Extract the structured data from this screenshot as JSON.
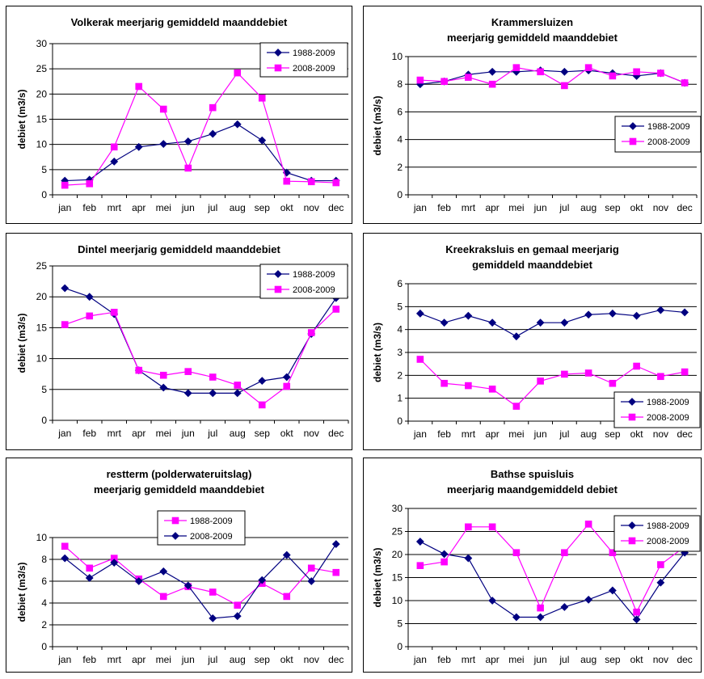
{
  "chart_data": [
    {
      "type": "line",
      "title": [
        "Volkerak meerjarig gemiddeld maanddebiet"
      ],
      "ylabel": "debiet (m3/s)",
      "categories": [
        "jan",
        "feb",
        "mrt",
        "apr",
        "mei",
        "jun",
        "jul",
        "aug",
        "sep",
        "okt",
        "nov",
        "dec"
      ],
      "ylim": [
        0,
        30
      ],
      "yticks": [
        0,
        5,
        10,
        15,
        20,
        25,
        30
      ],
      "grid": true,
      "legend": "top-right",
      "series": [
        {
          "name": "1988-2009",
          "marker": "diamond",
          "color": "#000080",
          "values": [
            2.8,
            3.0,
            6.6,
            9.5,
            10.1,
            10.6,
            12.1,
            14.0,
            10.8,
            4.4,
            2.8,
            2.8
          ]
        },
        {
          "name": "2008-2009",
          "marker": "square",
          "color": "#FF00FF",
          "values": [
            1.9,
            2.2,
            9.5,
            21.5,
            17.0,
            5.3,
            17.3,
            24.2,
            19.2,
            2.7,
            2.6,
            2.4
          ]
        }
      ]
    },
    {
      "type": "line",
      "title": [
        "Krammersluizen",
        "meerjarig gemiddeld maanddebiet"
      ],
      "ylabel": "debiet (m3/s)",
      "categories": [
        "jan",
        "feb",
        "mrt",
        "apr",
        "mei",
        "jun",
        "jul",
        "aug",
        "sep",
        "okt",
        "nov",
        "dec"
      ],
      "ylim": [
        0,
        10
      ],
      "yticks": [
        0,
        2,
        4,
        6,
        8,
        10
      ],
      "grid": true,
      "legend": "right",
      "series": [
        {
          "name": "1988-2009",
          "marker": "diamond",
          "color": "#000080",
          "values": [
            8.0,
            8.2,
            8.7,
            8.9,
            8.9,
            9.0,
            8.9,
            9.0,
            8.8,
            8.6,
            8.8,
            8.1
          ]
        },
        {
          "name": "2008-2009",
          "marker": "square",
          "color": "#FF00FF",
          "values": [
            8.3,
            8.2,
            8.5,
            8.0,
            9.2,
            8.9,
            7.9,
            9.2,
            8.6,
            8.9,
            8.8,
            8.1
          ]
        }
      ]
    },
    {
      "type": "line",
      "title": [
        "Dintel meerjarig gemiddeld maanddebiet"
      ],
      "ylabel": "debiet (m3/s)",
      "categories": [
        "jan",
        "feb",
        "mrt",
        "apr",
        "mei",
        "jun",
        "jul",
        "aug",
        "sep",
        "okt",
        "nov",
        "dec"
      ],
      "ylim": [
        0,
        25
      ],
      "yticks": [
        0,
        5,
        10,
        15,
        20,
        25
      ],
      "grid": true,
      "legend": "top-right",
      "series": [
        {
          "name": "1988-2009",
          "marker": "diamond",
          "color": "#000080",
          "values": [
            21.4,
            20.0,
            17.2,
            8.1,
            5.3,
            4.4,
            4.4,
            4.4,
            6.4,
            7.0,
            14.0,
            19.8
          ]
        },
        {
          "name": "2008-2009",
          "marker": "square",
          "color": "#FF00FF",
          "values": [
            15.5,
            16.9,
            17.5,
            8.1,
            7.3,
            7.9,
            7.0,
            5.7,
            2.5,
            5.5,
            14.2,
            18.0
          ]
        }
      ]
    },
    {
      "type": "line",
      "title": [
        "Kreekraksluis en gemaal meerjarig",
        "gemiddeld maanddebiet"
      ],
      "ylabel": "debiet (m3/s)",
      "categories": [
        "jan",
        "feb",
        "mrt",
        "apr",
        "mei",
        "jun",
        "jul",
        "aug",
        "sep",
        "okt",
        "nov",
        "dec"
      ],
      "ylim": [
        0,
        6
      ],
      "yticks": [
        0,
        1,
        2,
        3,
        4,
        5,
        6
      ],
      "grid": true,
      "legend": "bottom-right",
      "series": [
        {
          "name": "1988-2009",
          "marker": "diamond",
          "color": "#000080",
          "values": [
            4.7,
            4.3,
            4.6,
            4.3,
            3.7,
            4.3,
            4.3,
            4.65,
            4.7,
            4.6,
            4.85,
            4.75
          ]
        },
        {
          "name": "2008-2009",
          "marker": "square",
          "color": "#FF00FF",
          "values": [
            2.7,
            1.65,
            1.55,
            1.4,
            0.65,
            1.75,
            2.05,
            2.1,
            1.65,
            2.4,
            1.95,
            2.15
          ]
        }
      ]
    },
    {
      "type": "line",
      "title": [
        "restterm (polderwateruitslag)",
        "meerjarig gemiddeld maanddebiet"
      ],
      "ylabel": "debiet (m3/s)",
      "categories": [
        "jan",
        "feb",
        "mrt",
        "apr",
        "mei",
        "jun",
        "jul",
        "aug",
        "sep",
        "okt",
        "nov",
        "dec"
      ],
      "ylim": [
        0,
        10
      ],
      "yticks": [
        0,
        2,
        4,
        6,
        8,
        10
      ],
      "grid": true,
      "legend": "top-center",
      "series": [
        {
          "name": "1988-2009",
          "marker": "square",
          "color": "#FF00FF",
          "values": [
            9.2,
            7.2,
            8.1,
            6.2,
            4.6,
            5.5,
            5.0,
            3.8,
            5.8,
            4.6,
            7.2,
            6.8
          ]
        },
        {
          "name": "2008-2009",
          "marker": "diamond",
          "color": "#000080",
          "values": [
            8.1,
            6.3,
            7.7,
            6.0,
            6.9,
            5.6,
            2.6,
            2.8,
            6.1,
            8.4,
            6.0,
            9.4
          ]
        }
      ]
    },
    {
      "type": "line",
      "title": [
        "Bathse spuisluis",
        "meerjarig maandgemiddeld debiet"
      ],
      "ylabel": "debiet (m3/s)",
      "categories": [
        "jan",
        "feb",
        "mrt",
        "apr",
        "mei",
        "jun",
        "jul",
        "aug",
        "sep",
        "okt",
        "nov",
        "dec"
      ],
      "ylim": [
        0,
        30
      ],
      "yticks": [
        0,
        5,
        10,
        15,
        20,
        25,
        30
      ],
      "grid": true,
      "legend": "top-right",
      "series": [
        {
          "name": "1988-2009",
          "marker": "diamond",
          "color": "#000080",
          "values": [
            22.8,
            20.1,
            19.2,
            10.0,
            6.4,
            6.4,
            8.6,
            10.2,
            12.2,
            5.9,
            13.9,
            20.4
          ]
        },
        {
          "name": "2008-2009",
          "marker": "square",
          "color": "#FF00FF",
          "values": [
            17.6,
            18.4,
            26.0,
            26.0,
            20.4,
            8.4,
            20.4,
            26.6,
            20.4,
            7.5,
            17.8,
            21.7
          ]
        }
      ]
    }
  ]
}
